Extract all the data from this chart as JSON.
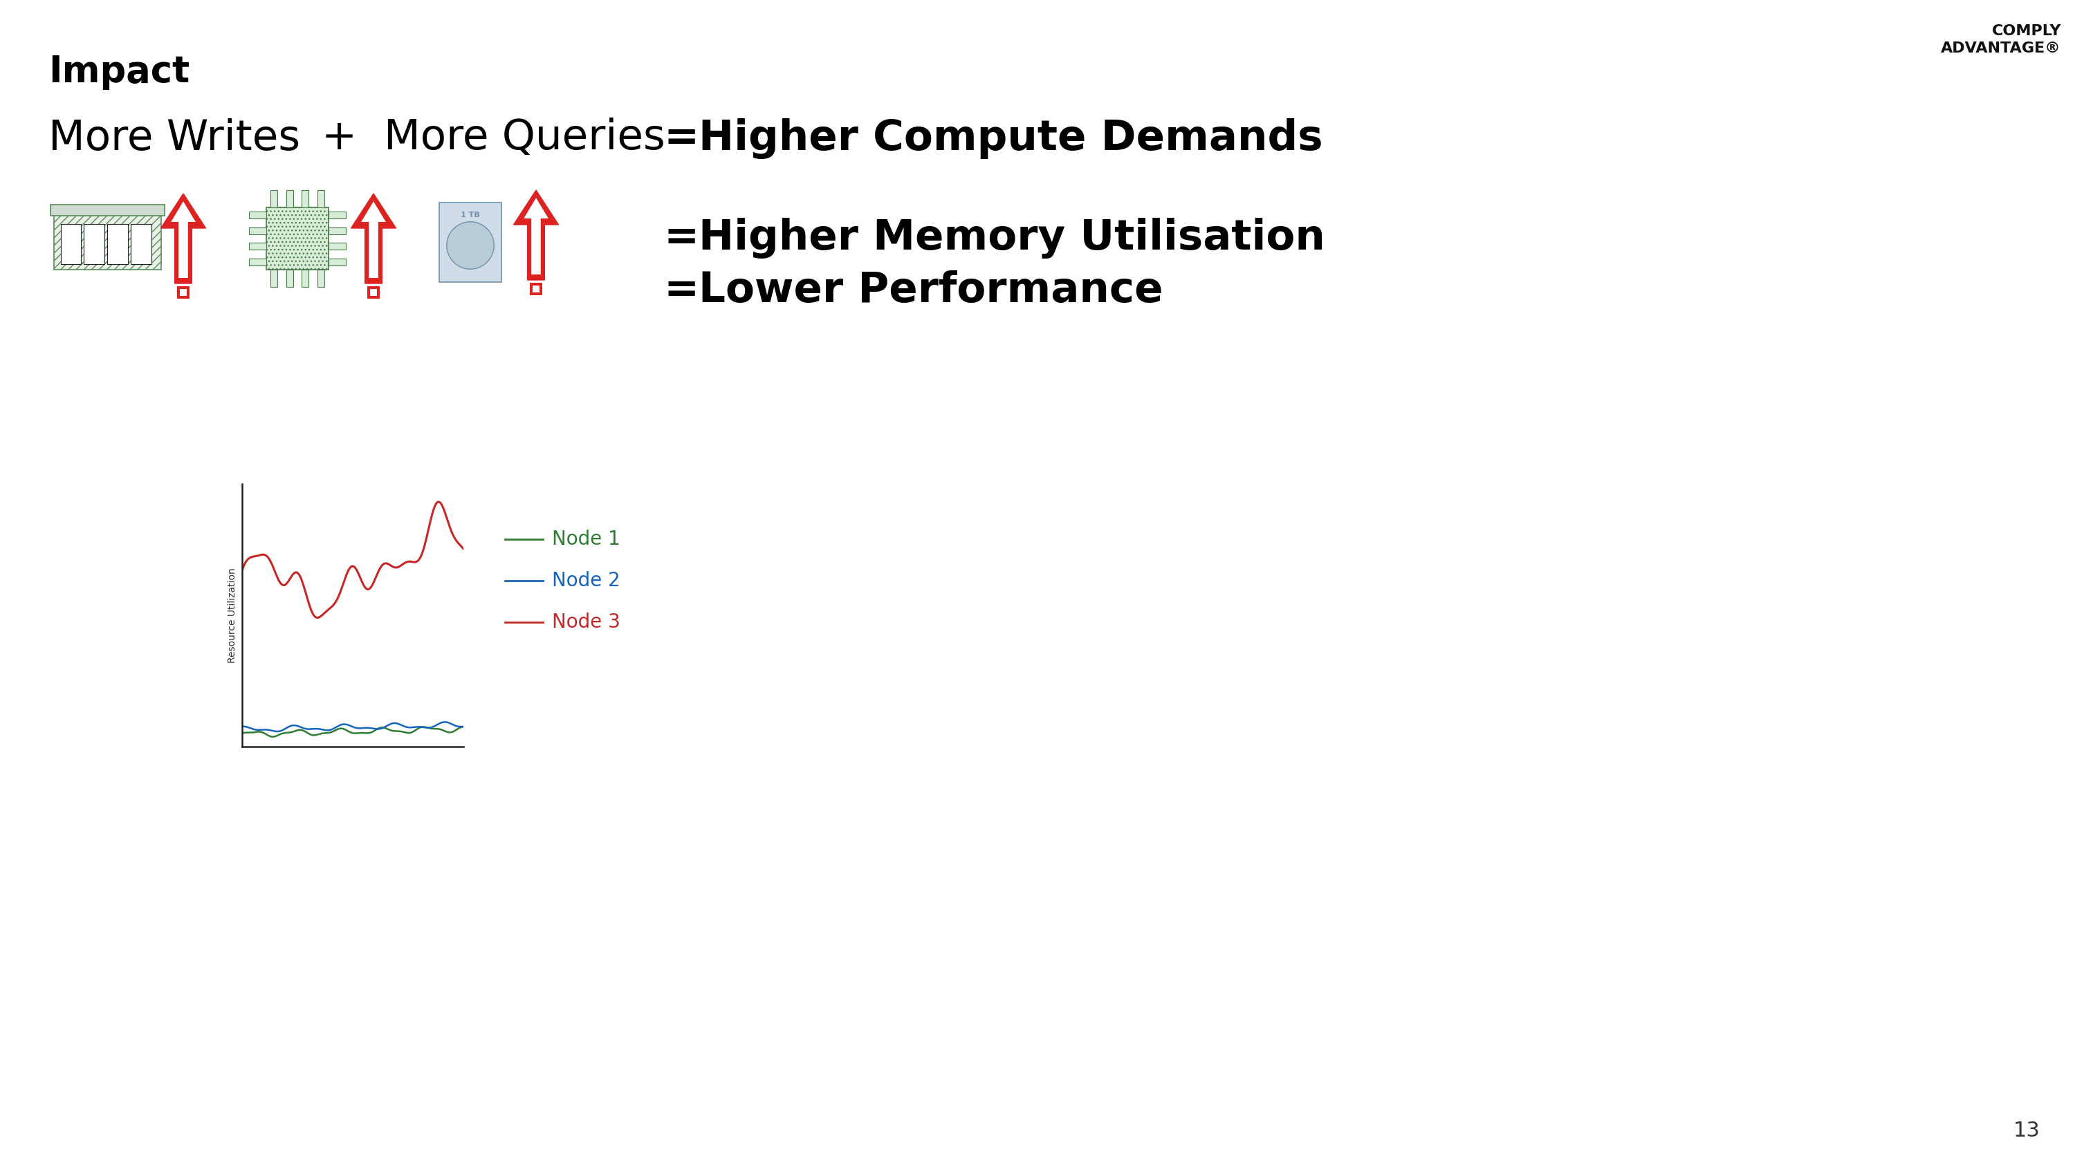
{
  "title": "Impact",
  "background_color": "#ffffff",
  "text_color": "#000000",
  "title_fontsize": 38,
  "line1_left": "More Writes",
  "line1_plus": "+",
  "line1_right": "More Queries",
  "line1_fontsize": 44,
  "eq1_label": "=",
  "eq1_text": "Higher Compute Demands",
  "eq2_label": "=",
  "eq2_text": "Higher Memory Utilisation",
  "eq3_label": "=",
  "eq3_text": "Lower Performance",
  "eq_fontsize": 44,
  "eq_bold": true,
  "node1_color": "#2e7d32",
  "node2_color": "#1565c0",
  "node3_color": "#c62828",
  "node1_label": "Node 1",
  "node2_label": "Node 2",
  "node3_label": "Node 3",
  "ylabel": "Resource Utilization",
  "page_number": "13",
  "logo_line1": "COMPLY",
  "logo_line2": "ADVANTAGE",
  "logo_r": "®"
}
